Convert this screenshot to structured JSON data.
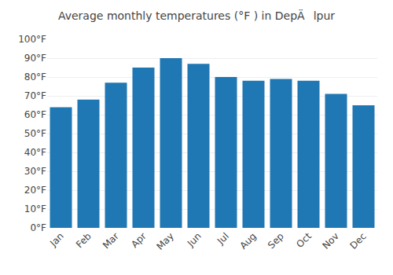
{
  "chart_data": {
    "type": "bar",
    "title": "Average monthly temperatures (°F ) in DepÄlpur",
    "categories": [
      "Jan",
      "Feb",
      "Mar",
      "Apr",
      "May",
      "Jun",
      "Jul",
      "Aug",
      "Sep",
      "Oct",
      "Nov",
      "Dec"
    ],
    "values": [
      64,
      68,
      77,
      85,
      90,
      87,
      80,
      78,
      79,
      78,
      71,
      65
    ],
    "ylim": [
      0,
      100
    ],
    "yticks": [
      {
        "value": 0,
        "label": "0°F"
      },
      {
        "value": 10,
        "label": "10°F"
      },
      {
        "value": 20,
        "label": "20°F"
      },
      {
        "value": 30,
        "label": "30°F"
      },
      {
        "value": 40,
        "label": "40°F"
      },
      {
        "value": 50,
        "label": "50°F"
      },
      {
        "value": 60,
        "label": "60°F"
      },
      {
        "value": 70,
        "label": "70°F"
      },
      {
        "value": 80,
        "label": "80°F"
      },
      {
        "value": 90,
        "label": "90°F"
      },
      {
        "value": 100,
        "label": "100°F"
      }
    ],
    "grid": true
  }
}
